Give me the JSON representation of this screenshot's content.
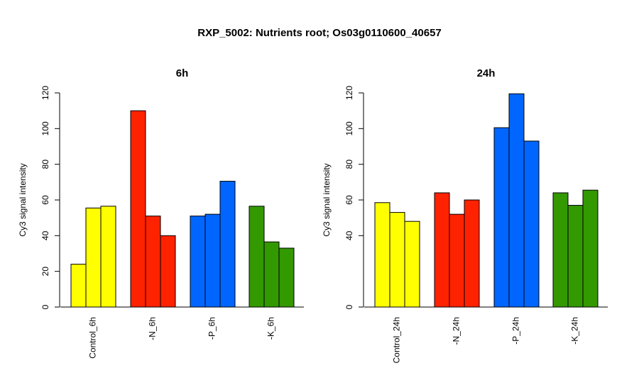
{
  "figure": {
    "title": "RXP_5002: Nutrients root; Os03g0110600_40657"
  },
  "chart_data": [
    {
      "type": "bar",
      "title": "6h",
      "ylabel": "Cy3 signal intensity",
      "xlabel": "",
      "ylim": [
        0,
        120
      ],
      "yticks": [
        0,
        20,
        40,
        60,
        80,
        100,
        120
      ],
      "grid": false,
      "categories": [
        "Control_6h",
        "-N_6h",
        "-P_6h",
        "-K_6h"
      ],
      "group_colors": [
        "#ffff00",
        "#ff2200",
        "#0066ff",
        "#339900"
      ],
      "values": [
        [
          24,
          55.5,
          56.5
        ],
        [
          110,
          51,
          40
        ],
        [
          51,
          52,
          70.5
        ],
        [
          56.5,
          36.5,
          33
        ]
      ]
    },
    {
      "type": "bar",
      "title": "24h",
      "ylabel": "Cy3 signal intensity",
      "xlabel": "",
      "ylim": [
        0,
        120
      ],
      "yticks": [
        0,
        40,
        60,
        80,
        100,
        120
      ],
      "grid": false,
      "categories": [
        "Control_24h",
        "-N_24h",
        "-P_24h",
        "-K_24h"
      ],
      "group_colors": [
        "#ffff00",
        "#ff2200",
        "#0066ff",
        "#339900"
      ],
      "values": [
        [
          58.5,
          53,
          48
        ],
        [
          64,
          52,
          60
        ],
        [
          100.5,
          119.5,
          93
        ],
        [
          64,
          57,
          65.5
        ]
      ]
    }
  ]
}
